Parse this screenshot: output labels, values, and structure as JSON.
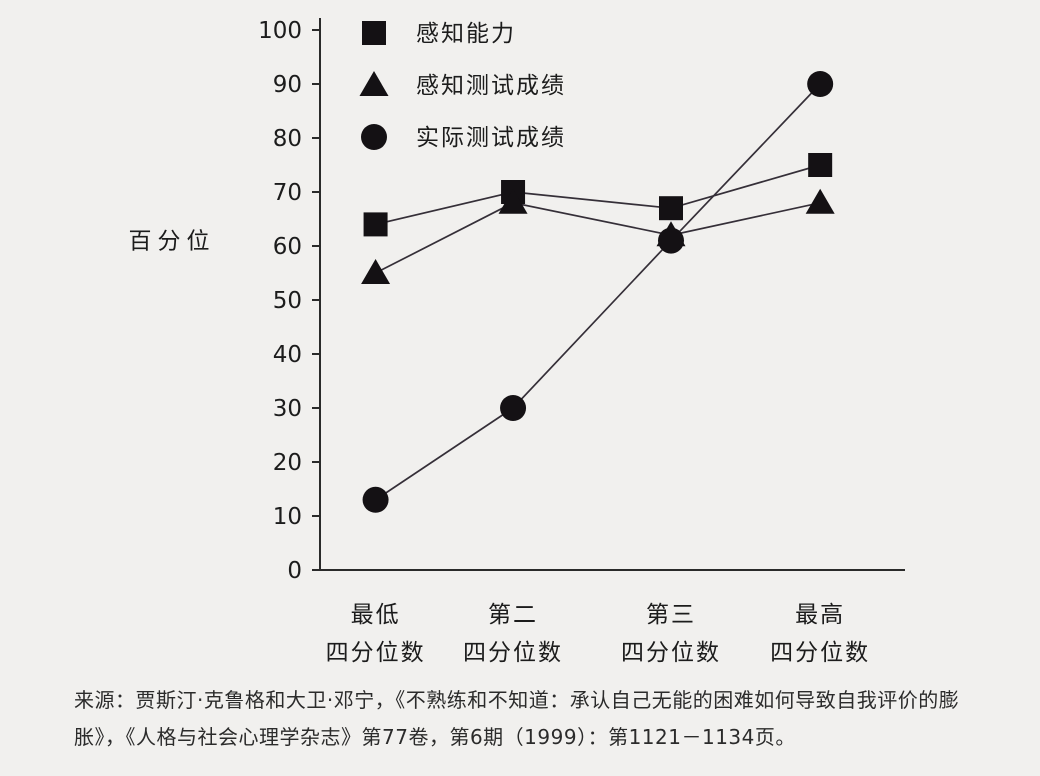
{
  "chart_data": {
    "type": "line",
    "title": "",
    "xlabel": "",
    "ylabel": "百分位",
    "ylim": [
      0,
      100
    ],
    "yticks": [
      0,
      10,
      20,
      30,
      40,
      50,
      60,
      70,
      80,
      90,
      100
    ],
    "grid": false,
    "legend_position": "top-left-inside",
    "categories": [
      [
        "最低",
        "四分位数"
      ],
      [
        "第二",
        "四分位数"
      ],
      [
        "第三",
        "四分位数"
      ],
      [
        "最高",
        "四分位数"
      ]
    ],
    "series": [
      {
        "name": "感知能力",
        "marker": "square",
        "values": [
          64,
          70,
          67,
          75
        ]
      },
      {
        "name": "感知测试成绩",
        "marker": "triangle",
        "values": [
          55,
          68,
          62,
          68
        ]
      },
      {
        "name": "实际测试成绩",
        "marker": "circle",
        "values": [
          13,
          30,
          61,
          90
        ]
      }
    ],
    "colors": {
      "line": "#352f38",
      "marker": "#141114",
      "axis": "#2a2a2a",
      "text": "#1c1c1c",
      "background": "#f1f0ee"
    }
  },
  "source_note": "来源：贾斯汀·克鲁格和大卫·邓宁，《不熟练和不知道：承认自己无能的困难如何导致自我评价的膨胀》，《人格与社会心理学杂志》第77卷，第6期（1999）：第1121－1134页。"
}
